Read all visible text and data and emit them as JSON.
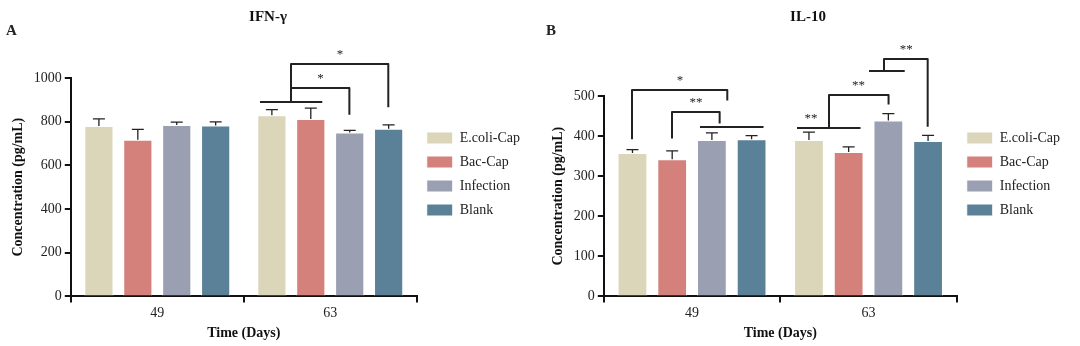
{
  "chart_data": [
    {
      "type": "bar",
      "title": "IFN-γ",
      "xlabel": "Time (Days)",
      "ylabel": "Concentration (pg/mL)",
      "categories": [
        "49",
        "63"
      ],
      "series": [
        {
          "name": "E.coli-Cap",
          "color": "#dbd5b9",
          "values": [
            780,
            829
          ],
          "errors": [
            33,
            26
          ]
        },
        {
          "name": "Bac-Cap",
          "color": "#d4817b",
          "values": [
            717,
            812
          ],
          "errors": [
            48,
            50
          ]
        },
        {
          "name": "Infection",
          "color": "#9a9fb2",
          "values": [
            785,
            750
          ],
          "errors": [
            13,
            10
          ]
        },
        {
          "name": "Blank",
          "color": "#5a8198",
          "values": [
            783,
            768
          ],
          "errors": [
            16,
            17
          ]
        }
      ],
      "ylim": [
        0,
        1000
      ],
      "yticks": [
        0,
        200,
        400,
        600,
        800,
        1000
      ],
      "grid": false,
      "legend": "right",
      "annotations": [
        "A",
        "*",
        "*"
      ]
    },
    {
      "type": "bar",
      "title": "IL-10",
      "xlabel": "Time (Days)",
      "ylabel": "Concentration (pg/mL)",
      "categories": [
        "49",
        "63"
      ],
      "series": [
        {
          "name": "E.coli-Cap",
          "color": "#dbd5b9",
          "values": [
            358,
            390
          ],
          "errors": [
            8,
            20
          ]
        },
        {
          "name": "Bac-Cap",
          "color": "#d4817b",
          "values": [
            342,
            360
          ],
          "errors": [
            21,
            13
          ]
        },
        {
          "name": "Infection",
          "color": "#9a9fb2",
          "values": [
            390,
            439
          ],
          "errors": [
            18,
            17
          ]
        },
        {
          "name": "Blank",
          "color": "#5a8198",
          "values": [
            392,
            388
          ],
          "errors": [
            9,
            14
          ]
        }
      ],
      "ylim": [
        0,
        500
      ],
      "yticks": [
        0,
        100,
        200,
        300,
        400,
        500
      ],
      "grid": false,
      "legend": "right",
      "annotations": [
        "B",
        "*",
        "**",
        "**",
        "**",
        "**"
      ]
    }
  ]
}
